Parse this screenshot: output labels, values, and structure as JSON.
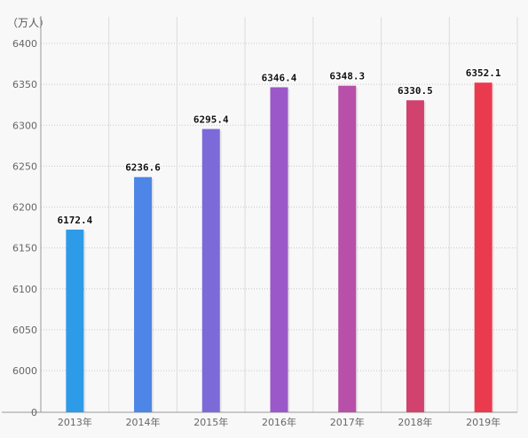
{
  "chart_data": {
    "type": "bar",
    "unit_label": "（万人）",
    "categories": [
      "2013年",
      "2014年",
      "2015年",
      "2016年",
      "2017年",
      "2018年",
      "2019年"
    ],
    "values": [
      6172.4,
      6236.6,
      6295.4,
      6346.4,
      6348.3,
      6330.5,
      6352.1
    ],
    "data_labels": [
      "6172.4",
      "6236.6",
      "6295.4",
      "6346.4",
      "6348.3",
      "6330.5",
      "6352.1"
    ],
    "y_ticks": [
      0,
      6000,
      6050,
      6100,
      6150,
      6200,
      6250,
      6300,
      6350,
      6400
    ],
    "ylim_broken": [
      5950,
      6420
    ],
    "grid": true,
    "legend": "none",
    "colors": [
      "#2e9be8",
      "#4d86e6",
      "#7b6ad8",
      "#9b58c8",
      "#b84fa8",
      "#d2426e",
      "#ea3a4e"
    ]
  }
}
